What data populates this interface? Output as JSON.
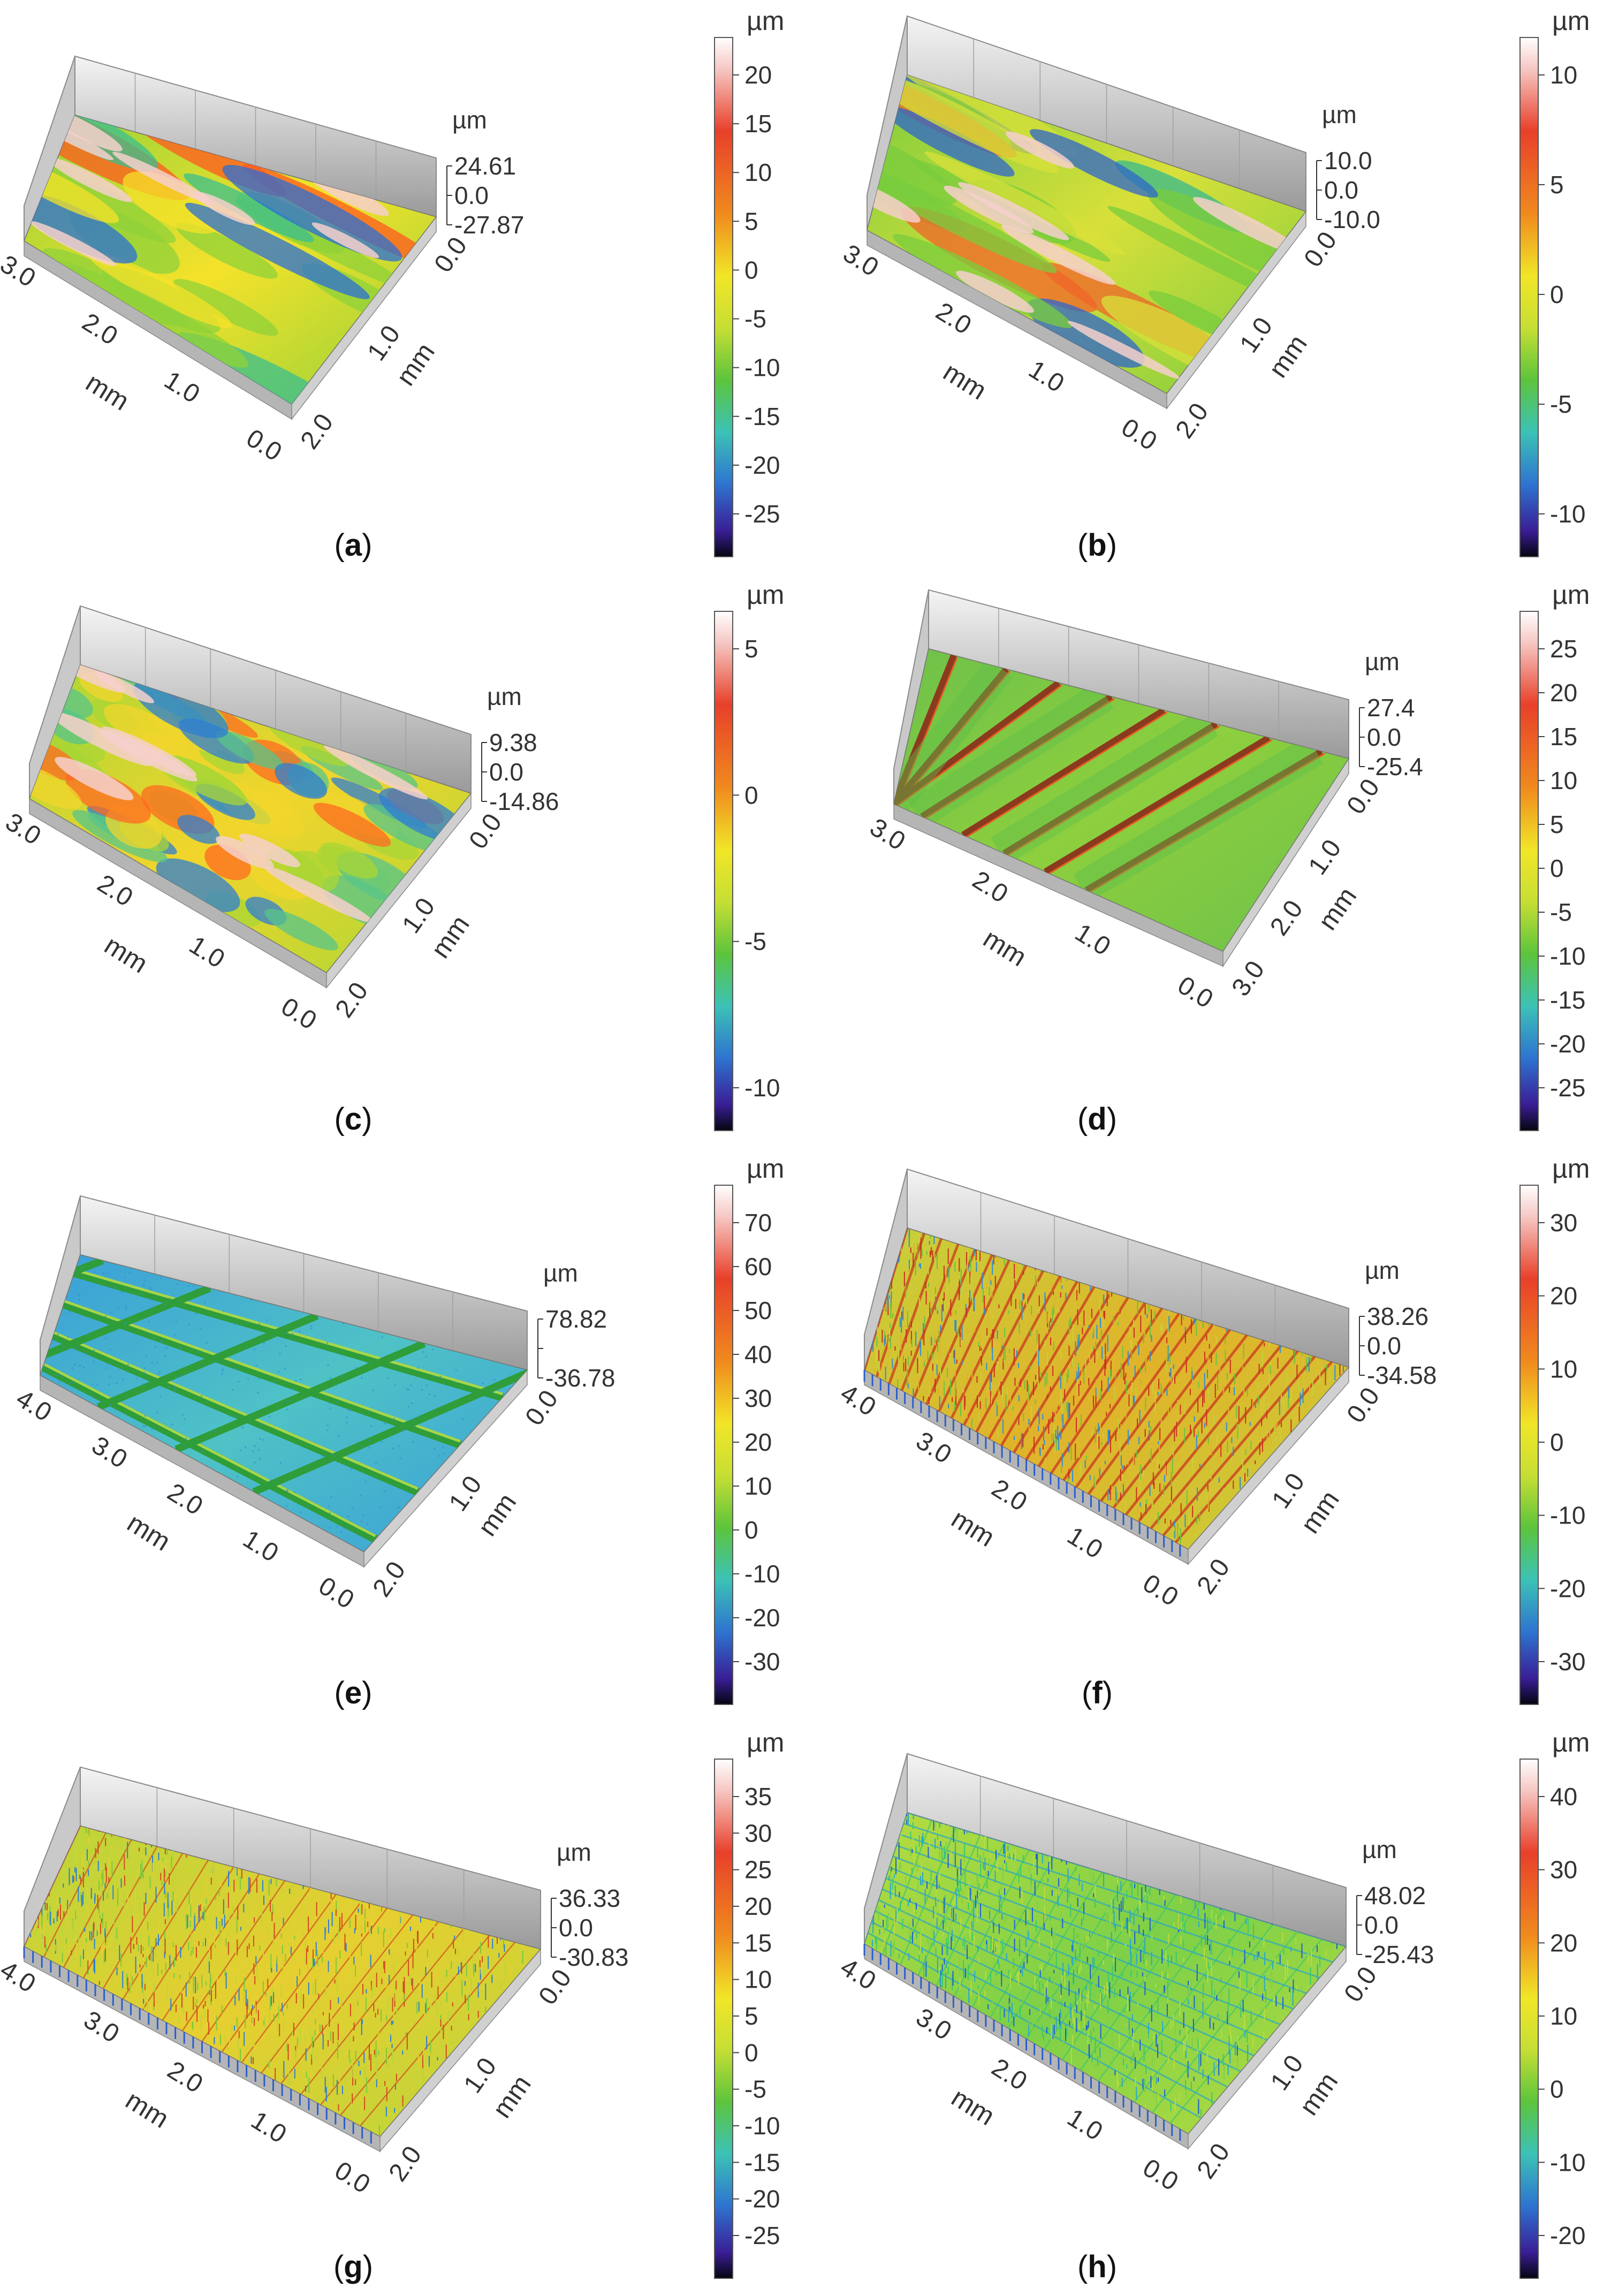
{
  "figure": {
    "panels": [
      {
        "id": "a",
        "caption_letter": "a",
        "surface": "scalloped",
        "colorbar": {
          "unit": "µm",
          "ticks": [
            "20",
            "15",
            "10",
            "5",
            "0",
            "-5",
            "-10",
            "-15",
            "-20",
            "-25"
          ]
        },
        "z_axis": {
          "unit": "µm",
          "labels": [
            "24.61",
            "0.0",
            "-27.87"
          ]
        },
        "left_axis": {
          "label": "mm",
          "ticks": [
            "3.0",
            "2.0",
            "1.0",
            "0.0"
          ]
        },
        "right_axis": {
          "label": "mm",
          "ticks": [
            "0.0",
            "1.0",
            "2.0"
          ]
        },
        "colors": [
          "#ff5a1f",
          "#f5e22a",
          "#8fd13a",
          "#3bbf8f",
          "#2a6fd6"
        ]
      },
      {
        "id": "b",
        "caption_letter": "b",
        "surface": "streaks",
        "colorbar": {
          "unit": "µm",
          "ticks": [
            "10",
            "5",
            "0",
            "-5",
            "-10"
          ]
        },
        "z_axis": {
          "unit": "µm",
          "labels": [
            "10.0",
            "0.0",
            "-10.0"
          ]
        },
        "left_axis": {
          "label": "mm",
          "ticks": [
            "3.0",
            "2.0",
            "1.0",
            "0.0"
          ]
        },
        "right_axis": {
          "label": "mm",
          "ticks": [
            "0.0",
            "1.0",
            "2.0"
          ]
        },
        "colors": [
          "#f0642a",
          "#d8e03a",
          "#7acc3d",
          "#35b98f",
          "#2e66cc"
        ]
      },
      {
        "id": "c",
        "caption_letter": "c",
        "surface": "rough",
        "colorbar": {
          "unit": "µm",
          "ticks": [
            "5",
            "0",
            "-5",
            "-10"
          ]
        },
        "z_axis": {
          "unit": "µm",
          "labels": [
            "9.38",
            "0.0",
            "-14.86"
          ]
        },
        "left_axis": {
          "label": "mm",
          "ticks": [
            "3.0",
            "2.0",
            "1.0",
            "0.0"
          ]
        },
        "right_axis": {
          "label": "mm",
          "ticks": [
            "0.0",
            "1.0",
            "2.0"
          ]
        },
        "colors": [
          "#ff6a20",
          "#f2d52c",
          "#a9d636",
          "#58c48a",
          "#2f7ed2"
        ]
      },
      {
        "id": "d",
        "caption_letter": "d",
        "surface": "diagonal-grooves",
        "colorbar": {
          "unit": "µm",
          "ticks": [
            "25",
            "20",
            "15",
            "10",
            "5",
            "0",
            "-5",
            "-10",
            "-15",
            "-20",
            "-25"
          ]
        },
        "z_axis": {
          "unit": "µm",
          "labels": [
            "27.4",
            "0.0",
            "-25.4"
          ]
        },
        "left_axis": {
          "label": "mm",
          "ticks": [
            "3.0",
            "2.0",
            "1.0",
            "0.0"
          ]
        },
        "right_axis": {
          "label": "mm",
          "ticks": [
            "0.0",
            "1.0",
            "2.0",
            "3.0"
          ]
        },
        "colors": [
          "#b8d83a",
          "#8dcf3e",
          "#6ec14a",
          "#9a3a1c",
          "#e0d23a"
        ]
      },
      {
        "id": "e",
        "caption_letter": "e",
        "surface": "crosshatch",
        "colorbar": {
          "unit": "µm",
          "ticks": [
            "70",
            "60",
            "50",
            "40",
            "30",
            "20",
            "10",
            "0",
            "-10",
            "-20",
            "-30"
          ]
        },
        "z_axis": {
          "unit": "µm",
          "labels": [
            "78.82",
            "",
            "-36.78"
          ]
        },
        "left_axis": {
          "label": "mm",
          "ticks": [
            "4.0",
            "3.0",
            "2.0",
            "1.0",
            "0.0"
          ]
        },
        "right_axis": {
          "label": "mm",
          "ticks": [
            "0.0",
            "1.0",
            "2.0"
          ]
        },
        "colors": [
          "#63d6d0",
          "#4fc2c6",
          "#3a9fd8",
          "#2f9d3a",
          "#a6d64a"
        ]
      },
      {
        "id": "f",
        "caption_letter": "f",
        "surface": "dense-lines",
        "colorbar": {
          "unit": "µm",
          "ticks": [
            "30",
            "20",
            "10",
            "0",
            "-10",
            "-20",
            "-30"
          ]
        },
        "z_axis": {
          "unit": "µm",
          "labels": [
            "38.26",
            "0.0",
            "-34.58"
          ]
        },
        "left_axis": {
          "label": "mm",
          "ticks": [
            "4.0",
            "3.0",
            "2.0",
            "1.0",
            "0.0"
          ]
        },
        "right_axis": {
          "label": "mm",
          "ticks": [
            "0.0",
            "1.0",
            "2.0"
          ]
        },
        "colors": [
          "#c9301e",
          "#e0b32a",
          "#c6d23a",
          "#6cc23d",
          "#2d8ed6"
        ]
      },
      {
        "id": "g",
        "caption_letter": "g",
        "surface": "fine-texture",
        "colorbar": {
          "unit": "µm",
          "ticks": [
            "35",
            "30",
            "25",
            "20",
            "15",
            "10",
            "5",
            "0",
            "-5",
            "-10",
            "-15",
            "-20",
            "-25"
          ]
        },
        "z_axis": {
          "unit": "µm",
          "labels": [
            "36.33",
            "0.0",
            "-30.83"
          ]
        },
        "left_axis": {
          "label": "mm",
          "ticks": [
            "4.0",
            "3.0",
            "2.0",
            "1.0",
            "0.0"
          ]
        },
        "right_axis": {
          "label": "mm",
          "ticks": [
            "0.0",
            "1.0",
            "2.0"
          ]
        },
        "colors": [
          "#d24a20",
          "#e6cf30",
          "#b9d63a",
          "#7cc83e",
          "#2b7fd4"
        ]
      },
      {
        "id": "h",
        "caption_letter": "h",
        "surface": "fine-grid",
        "colorbar": {
          "unit": "µm",
          "ticks": [
            "40",
            "30",
            "20",
            "10",
            "0",
            "-10",
            "-20"
          ]
        },
        "z_axis": {
          "unit": "µm",
          "labels": [
            "48.02",
            "0.0",
            "-25.43"
          ]
        },
        "left_axis": {
          "label": "mm",
          "ticks": [
            "4.0",
            "3.0",
            "2.0",
            "1.0",
            "0.0"
          ]
        },
        "right_axis": {
          "label": "mm",
          "ticks": [
            "0.0",
            "1.0",
            "2.0"
          ]
        },
        "colors": [
          "#3cc86a",
          "#7dd048",
          "#b9dc3e",
          "#2aa7c8",
          "#1f5fcf"
        ]
      }
    ]
  }
}
